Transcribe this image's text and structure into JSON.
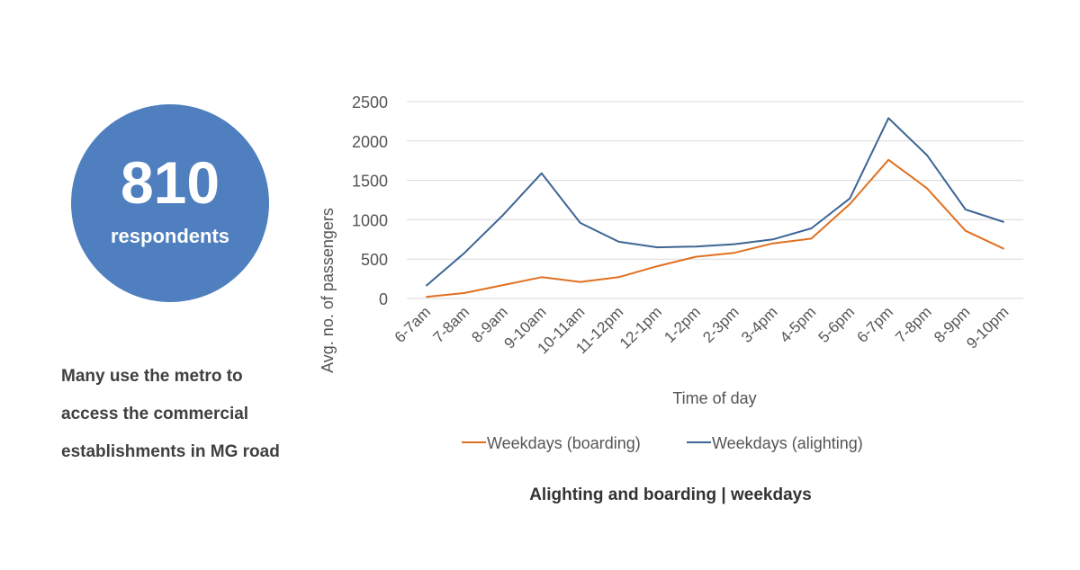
{
  "stat": {
    "number": "810",
    "label": "respondents"
  },
  "note": "Many use the metro to access the commercial establishments  in MG road",
  "chart_data": {
    "type": "line",
    "title": "Alighting and boarding | weekdays",
    "xlabel": "Time of day",
    "ylabel": "Avg. no. of passengers",
    "ylim": [
      0,
      2500
    ],
    "yticks": [
      0,
      500,
      1000,
      1500,
      2000,
      2500
    ],
    "grid": true,
    "legend": "bottom",
    "categories": [
      "6-7am",
      "7-8am",
      "8-9am",
      "9-10am",
      "10-11am",
      "11-12pm",
      "12-1pm",
      "1-2pm",
      "2-3pm",
      "3-4pm",
      "4-5pm",
      "5-6pm",
      "6-7pm",
      "7-8pm",
      "8-9pm",
      "9-10pm"
    ],
    "series": [
      {
        "name": "Weekdays (boarding)",
        "color": "#e07020",
        "values": [
          20,
          70,
          170,
          270,
          210,
          270,
          410,
          530,
          580,
          700,
          760,
          1200,
          1760,
          1400,
          860,
          630
        ]
      },
      {
        "name": "Weekdays (alighting)",
        "color": "#3d6594",
        "values": [
          160,
          580,
          1060,
          1590,
          960,
          720,
          650,
          660,
          690,
          750,
          890,
          1270,
          2290,
          1820,
          1130,
          970
        ]
      }
    ]
  }
}
